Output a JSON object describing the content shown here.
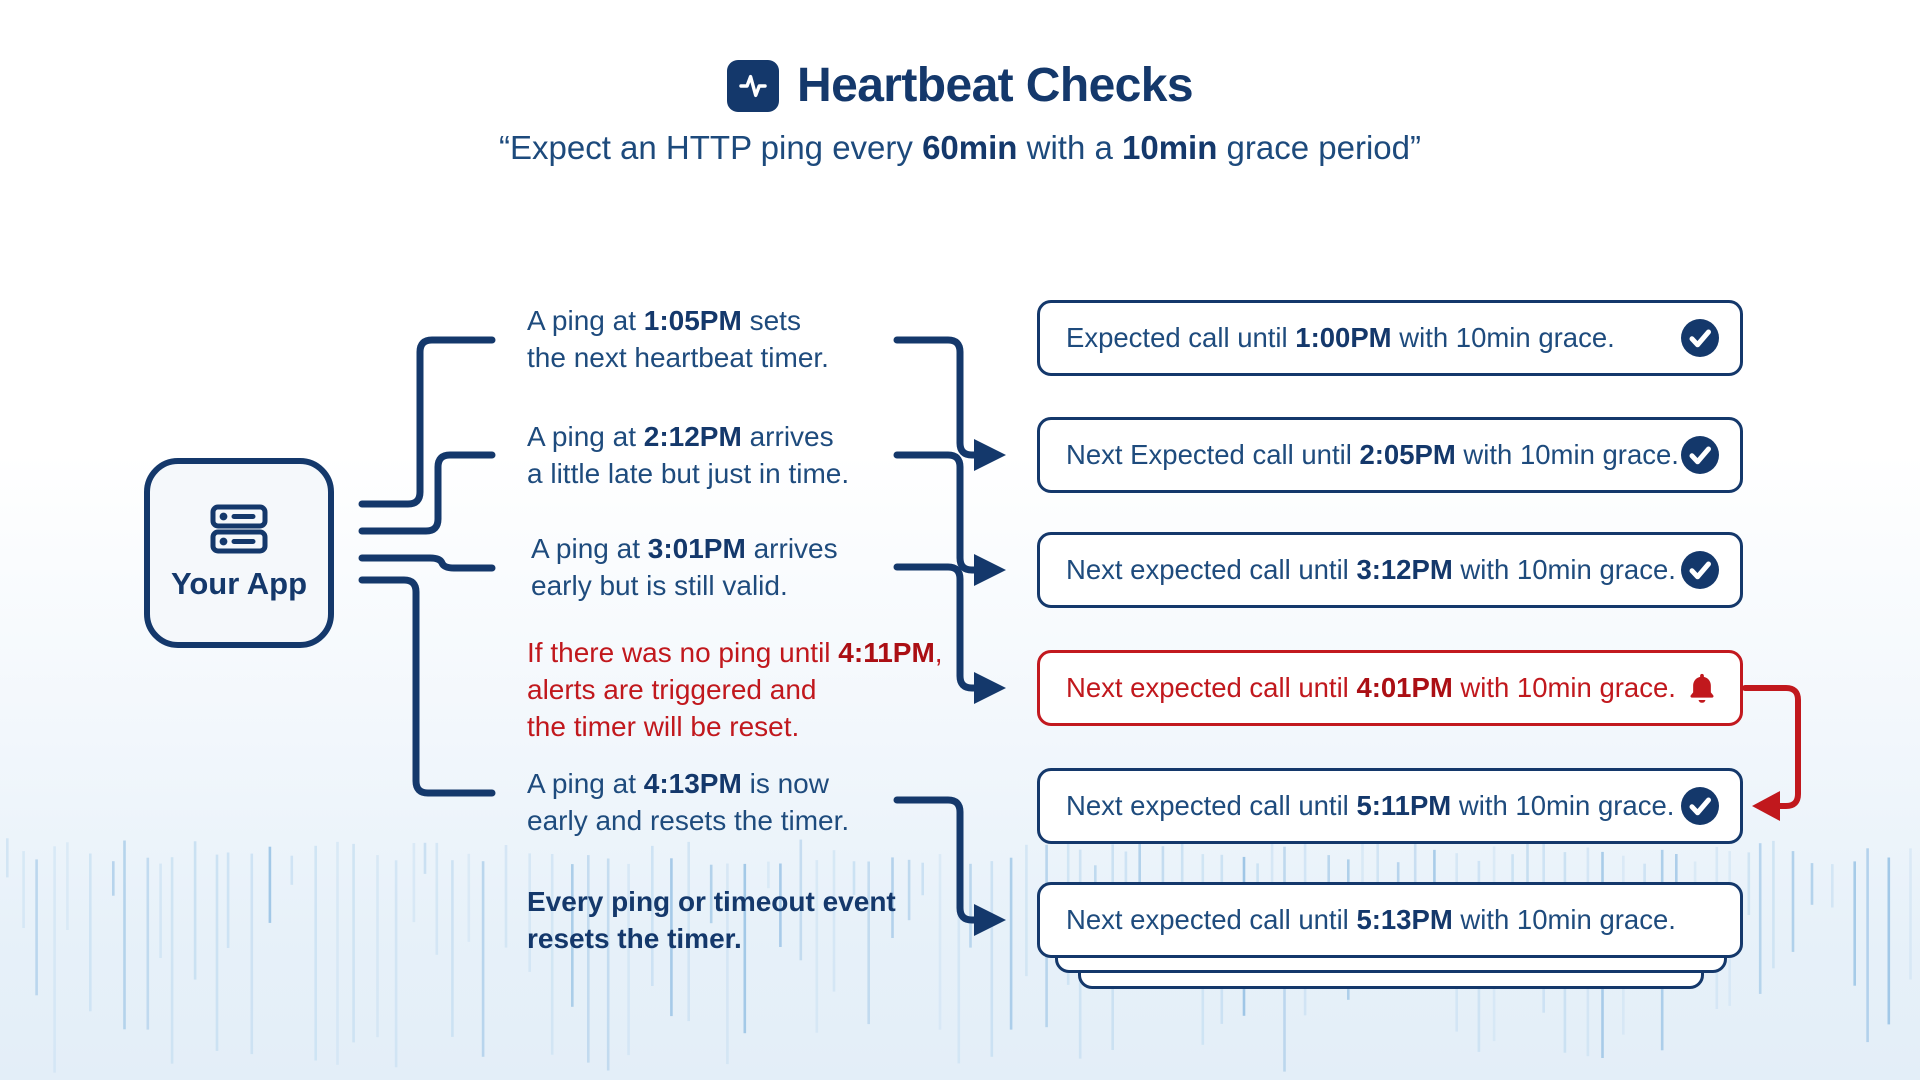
{
  "header": {
    "icon": "activity-icon",
    "title": "Heartbeat Checks",
    "subtitle_segments": [
      {
        "t": "“Expect an HTTP ping every "
      },
      {
        "t": "60min",
        "b": true
      },
      {
        "t": " with a "
      },
      {
        "t": "10min",
        "b": true
      },
      {
        "t": " grace period”"
      }
    ]
  },
  "app_box": {
    "icon": "server-icon",
    "label": "Your App"
  },
  "annotations": [
    {
      "variant": "navy",
      "lines": [
        [
          {
            "t": "A ping at "
          },
          {
            "t": "1:05PM",
            "b": true
          },
          {
            "t": " sets"
          }
        ],
        [
          {
            "t": "the next heartbeat timer."
          }
        ]
      ]
    },
    {
      "variant": "navy",
      "lines": [
        [
          {
            "t": "A ping at "
          },
          {
            "t": "2:12PM",
            "b": true
          },
          {
            "t": " arrives"
          }
        ],
        [
          {
            "t": "a little late but just in time."
          }
        ]
      ]
    },
    {
      "variant": "navy",
      "lines": [
        [
          {
            "t": "A ping at "
          },
          {
            "t": "3:01PM",
            "b": true
          },
          {
            "t": " arrives"
          }
        ],
        [
          {
            "t": "early but is still valid."
          }
        ]
      ]
    },
    {
      "variant": "red",
      "lines": [
        [
          {
            "t": "If there was no ping until "
          },
          {
            "t": "4:11PM",
            "b": true
          },
          {
            "t": ","
          }
        ],
        [
          {
            "t": "alerts are triggered and"
          }
        ],
        [
          {
            "t": "the timer will be reset."
          }
        ]
      ]
    },
    {
      "variant": "navy",
      "lines": [
        [
          {
            "t": "A ping at "
          },
          {
            "t": "4:13PM",
            "b": true
          },
          {
            "t": " is now"
          }
        ],
        [
          {
            "t": "early and resets the timer."
          }
        ]
      ]
    },
    {
      "variant": "navy",
      "lines": [
        [
          {
            "t": "Every ping or timeout event",
            "b": true
          }
        ],
        [
          {
            "t": "resets the timer.",
            "b": true
          }
        ]
      ]
    }
  ],
  "status_boxes": [
    {
      "variant": "navy",
      "icon": "check-circle-icon",
      "segments": [
        {
          "t": "Expected call until "
        },
        {
          "t": "1:00PM",
          "b": true
        },
        {
          "t": " with 10min grace."
        }
      ]
    },
    {
      "variant": "navy",
      "icon": "check-circle-icon",
      "segments": [
        {
          "t": "Next Expected call until "
        },
        {
          "t": "2:05PM",
          "b": true
        },
        {
          "t": " with 10min grace."
        }
      ]
    },
    {
      "variant": "navy",
      "icon": "check-circle-icon",
      "segments": [
        {
          "t": "Next expected call until "
        },
        {
          "t": "3:12PM",
          "b": true
        },
        {
          "t": " with 10min grace."
        }
      ]
    },
    {
      "variant": "red",
      "icon": "bell-icon",
      "segments": [
        {
          "t": "Next expected call until "
        },
        {
          "t": "4:01PM",
          "b": true
        },
        {
          "t": " with 10min grace."
        }
      ]
    },
    {
      "variant": "navy",
      "icon": "check-circle-icon",
      "segments": [
        {
          "t": "Next expected call until "
        },
        {
          "t": "5:11PM",
          "b": true
        },
        {
          "t": " with 10min grace."
        }
      ]
    },
    {
      "variant": "navy",
      "icon": null,
      "segments": [
        {
          "t": "Next expected call until "
        },
        {
          "t": "5:13PM",
          "b": true
        },
        {
          "t": " with 10min grace."
        }
      ]
    }
  ],
  "colors": {
    "navy": "#14386b",
    "navy_text": "#1e4b7d",
    "red": "#c1181d",
    "red_dark": "#ab0f14",
    "app_box_bg": "#f5f8fb",
    "waveform_strong": "#9fc6e6",
    "waveform_light": "#c9e0f2"
  }
}
